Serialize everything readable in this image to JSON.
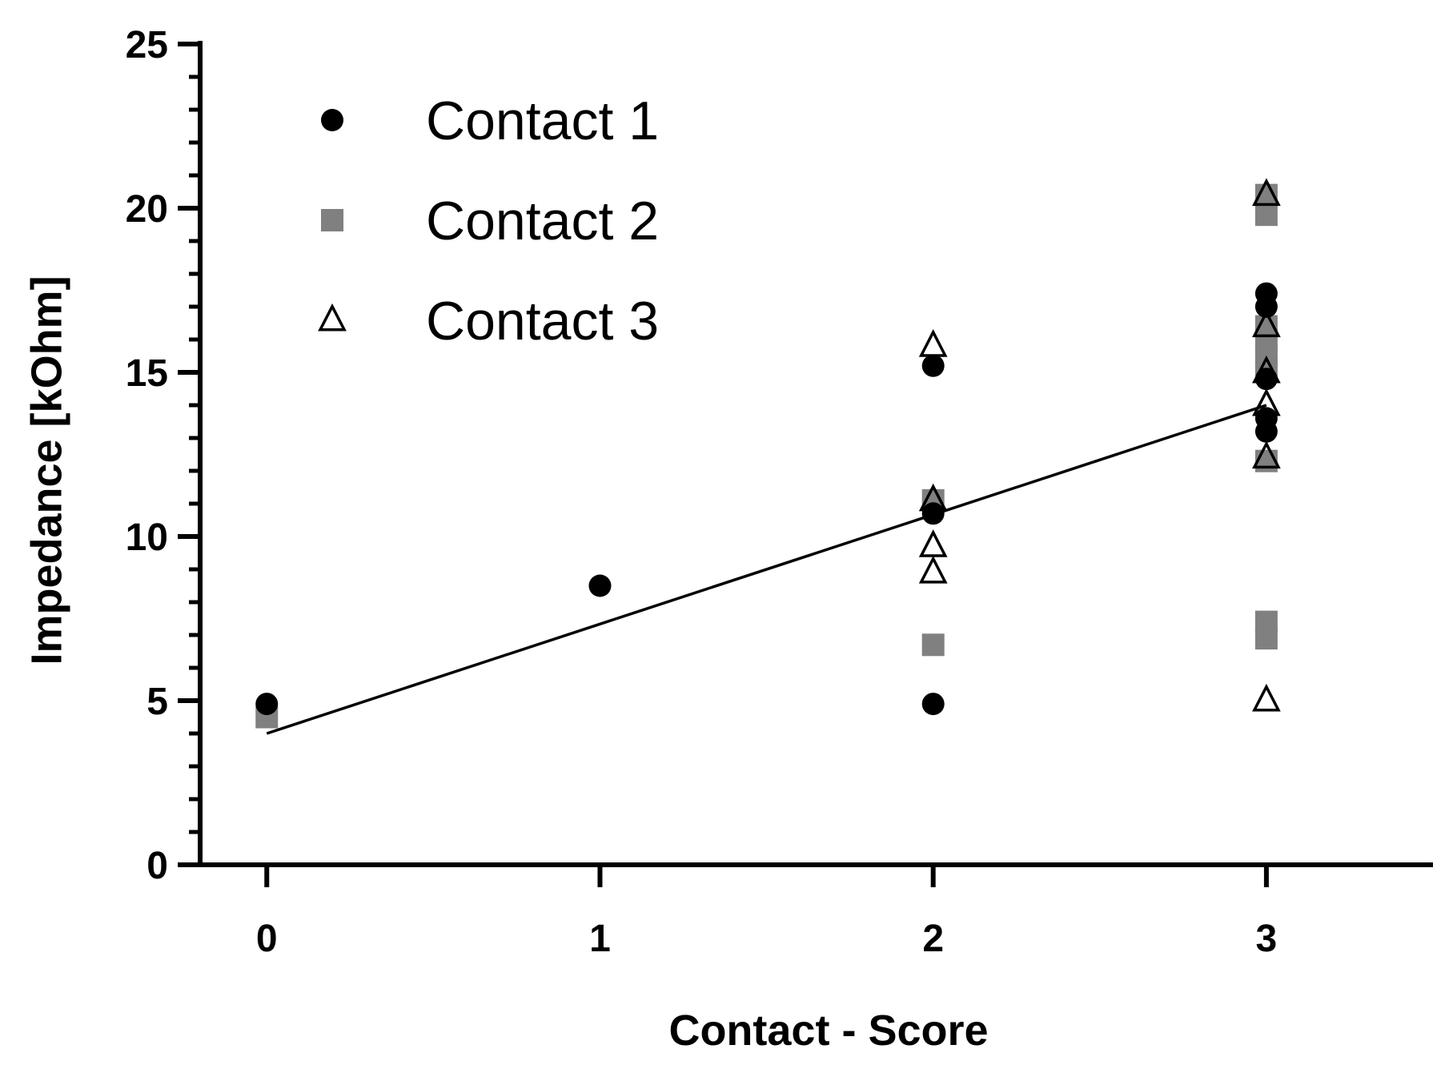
{
  "chart_data": {
    "type": "scatter",
    "title": "",
    "xlabel": "Contact - Score",
    "ylabel": "Impedance [kOhm]",
    "xlim": [
      -0.2,
      3.5
    ],
    "ylim": [
      0,
      25
    ],
    "x_ticks": [
      0,
      1,
      2,
      3
    ],
    "y_ticks": [
      0,
      5,
      10,
      15,
      20,
      25
    ],
    "y_minor_step": 1,
    "grid": false,
    "legend_position": "top-left",
    "series": [
      {
        "name": "Contact 1",
        "marker": "circle",
        "color": "#000000",
        "points": [
          {
            "x": 0,
            "y": 4.9
          },
          {
            "x": 1,
            "y": 8.5
          },
          {
            "x": 2,
            "y": 15.2
          },
          {
            "x": 2,
            "y": 10.7
          },
          {
            "x": 2,
            "y": 4.9
          },
          {
            "x": 3,
            "y": 17.4
          },
          {
            "x": 3,
            "y": 17.0
          },
          {
            "x": 3,
            "y": 14.8
          },
          {
            "x": 3,
            "y": 13.6
          },
          {
            "x": 3,
            "y": 13.2
          }
        ]
      },
      {
        "name": "Contact 2",
        "marker": "square",
        "color": "#808080",
        "points": [
          {
            "x": 0,
            "y": 4.5
          },
          {
            "x": 2,
            "y": 11.1
          },
          {
            "x": 2,
            "y": 6.7
          },
          {
            "x": 3,
            "y": 20.4
          },
          {
            "x": 3,
            "y": 19.8
          },
          {
            "x": 3,
            "y": 16.4
          },
          {
            "x": 3,
            "y": 16.0
          },
          {
            "x": 3,
            "y": 15.5
          },
          {
            "x": 3,
            "y": 15.1
          },
          {
            "x": 3,
            "y": 12.3
          },
          {
            "x": 3,
            "y": 7.4
          },
          {
            "x": 3,
            "y": 6.9
          }
        ]
      },
      {
        "name": "Contact 3",
        "marker": "triangle-open",
        "color": "#000000",
        "points": [
          {
            "x": 2,
            "y": 15.8
          },
          {
            "x": 2,
            "y": 11.1
          },
          {
            "x": 2,
            "y": 9.7
          },
          {
            "x": 2,
            "y": 8.9
          },
          {
            "x": 3,
            "y": 20.4
          },
          {
            "x": 3,
            "y": 16.4
          },
          {
            "x": 3,
            "y": 15.0
          },
          {
            "x": 3,
            "y": 14.0
          },
          {
            "x": 3,
            "y": 12.4
          },
          {
            "x": 3,
            "y": 5.0
          }
        ]
      }
    ],
    "trend_line": {
      "color": "#000000",
      "from": {
        "x": 0,
        "y": 4.0
      },
      "to": {
        "x": 3,
        "y": 14.0
      }
    }
  }
}
